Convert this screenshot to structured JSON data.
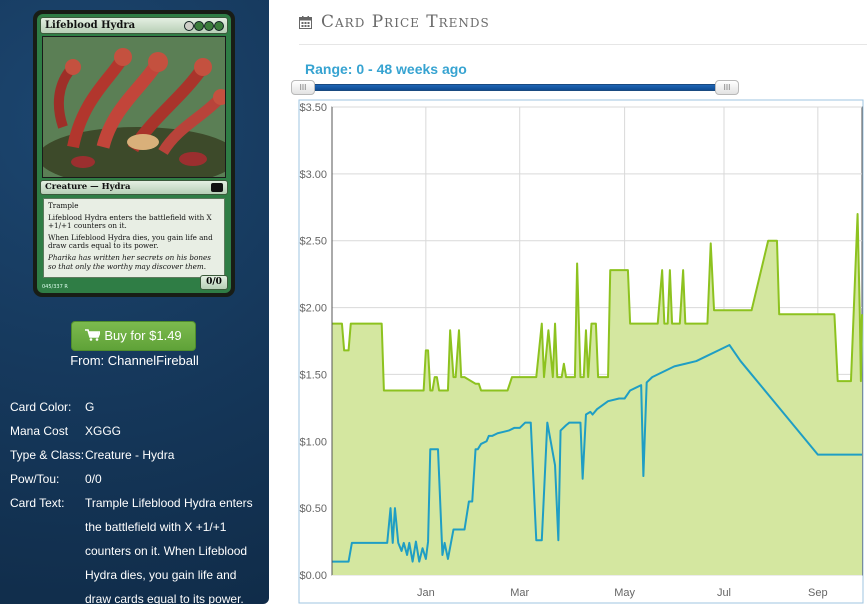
{
  "card": {
    "name": "Lifeblood Hydra",
    "type_line": "Creature — Hydra",
    "rules_text_1": "Trample",
    "rules_text_2": "Lifeblood Hydra enters the battlefield with X +1/+1 counters on it.",
    "rules_text_3": "When Lifeblood Hydra dies, you gain life and draw cards equal to its power.",
    "flavor_text": "Pharika has written her secrets on his bones so that only the worthy may discover them.",
    "pt": "0/0",
    "collector": "045/337 R"
  },
  "buy": {
    "label": "Buy for $1.49",
    "from": "From: ChannelFireball"
  },
  "details": {
    "card_color_label": "Card Color:",
    "card_color": "G",
    "mana_cost_label": "Mana Cost",
    "mana_cost": "XGGG",
    "type_class_label": "Type & Class:",
    "type_class": "Creature - Hydra",
    "pow_tou_label": "Pow/Tou:",
    "pow_tou": "0/0",
    "card_text_label": "Card Text:",
    "card_text": "Trample Lifeblood Hydra enters the battlefield with X +1/+1 counters on it. When Lifeblood Hydra dies, you gain life and draw cards equal to its power."
  },
  "trends": {
    "title": "Card Price Trends",
    "range_label": "Range: 0 - 48 weeks ago",
    "range_min_weeks": 0,
    "range_max_weeks": 48,
    "handle_glyph": "III"
  },
  "colors": {
    "panel_bg": "#15375a",
    "buy_button": "#6aad42",
    "range_label": "#36a3d1",
    "series_green": "#8dc21f",
    "series_green_fill": "#d4e7a0",
    "series_blue": "#1f9ec4"
  },
  "chart_data": {
    "type": "area",
    "xlabel": "",
    "ylabel": "",
    "x_tick_labels": [
      "Jan",
      "Mar",
      "May",
      "Jul",
      "Sep"
    ],
    "x_tick_weeks": [
      8.5,
      17,
      26.5,
      35.5,
      44
    ],
    "xlim": [
      0,
      48
    ],
    "ylim": [
      0,
      3.5
    ],
    "y_tick_labels": [
      "$0.00",
      "$0.50",
      "$1.00",
      "$1.50",
      "$2.00",
      "$2.50",
      "$3.00",
      "$3.50"
    ],
    "y_ticks": [
      0,
      0.5,
      1.0,
      1.5,
      2.0,
      2.5,
      3.0,
      3.5
    ],
    "grid": true,
    "legend": "none",
    "series": [
      {
        "x": [
          0,
          0.9,
          1.1,
          1.5,
          1.7,
          4.5,
          4.7,
          7.5,
          7.7,
          7.9,
          8.1,
          8.3,
          8.5,
          8.7,
          8.9,
          9.1,
          9.3,
          9.5,
          9.7,
          9.9,
          10.1,
          10.3,
          10.5,
          10.7,
          11.0,
          11.2,
          11.5,
          11.7,
          12.0,
          13.0,
          13.3,
          13.5,
          14.0,
          14.3,
          15.7,
          15.9,
          16.3,
          16.5,
          16.7,
          17.0,
          17.2,
          18.0,
          18.2,
          18.5,
          19.0,
          19.2,
          19.6,
          20.0,
          20.2,
          20.4,
          20.8,
          21.0,
          21.2,
          21.5,
          22.0,
          22.2,
          22.5,
          22.8,
          23.0,
          23.2,
          23.5,
          23.9,
          24.1,
          24.6,
          24.8,
          25.0,
          25.2,
          25.5,
          26.0,
          26.2,
          26.5,
          26.8,
          27.0,
          27.2,
          27.5,
          28.0,
          28.3,
          28.7,
          29.2,
          29.5,
          29.9,
          30.1,
          30.4,
          30.6,
          30.8,
          31.2,
          31.5,
          31.8,
          32.0,
          32.3,
          32.7,
          33.0,
          33.3,
          33.7,
          34.0,
          34.3,
          34.6,
          34.8,
          35.0,
          35.3,
          35.5,
          35.7,
          36.0,
          36.3,
          36.6,
          38.0,
          39.5,
          40.3,
          40.5,
          41.5,
          43.0,
          45.5,
          45.8,
          46.0,
          47.0,
          47.6,
          47.8,
          47.9,
          48.0
        ],
        "values": [
          1.88,
          1.88,
          1.68,
          1.68,
          1.88,
          1.88,
          1.38,
          1.38,
          1.38,
          1.38,
          1.38,
          1.38,
          1.68,
          1.68,
          1.38,
          1.38,
          1.48,
          1.48,
          1.38,
          1.38,
          1.38,
          1.38,
          1.38,
          1.83,
          1.48,
          1.48,
          1.83,
          1.48,
          1.48,
          1.43,
          1.43,
          1.38,
          1.38,
          1.38,
          1.38,
          1.38,
          1.48,
          1.48,
          1.48,
          1.48,
          1.48,
          1.48,
          1.48,
          1.48,
          1.88,
          1.48,
          1.83,
          1.48,
          1.88,
          1.48,
          1.48,
          1.58,
          1.48,
          1.48,
          1.48,
          2.33,
          1.48,
          1.48,
          1.83,
          1.48,
          1.88,
          1.88,
          1.48,
          1.48,
          1.48,
          1.48,
          2.28,
          2.28,
          2.28,
          2.28,
          2.28,
          2.28,
          1.88,
          1.88,
          1.88,
          1.88,
          1.88,
          1.88,
          1.88,
          1.88,
          2.28,
          1.88,
          1.88,
          2.28,
          1.88,
          1.88,
          1.88,
          2.28,
          1.88,
          1.88,
          1.88,
          1.88,
          1.88,
          1.88,
          1.88,
          2.48,
          1.98,
          1.98,
          1.98,
          1.98,
          1.98,
          1.98,
          1.98,
          1.98,
          1.98,
          1.98,
          2.5,
          2.5,
          1.95,
          1.95,
          1.95,
          1.95,
          1.45,
          1.45,
          1.45,
          2.7,
          1.95,
          1.45,
          1.95
        ]
      },
      {
        "x": [
          0,
          1.3,
          1.5,
          1.8,
          5.0,
          5.3,
          5.5,
          5.7,
          6.0,
          6.3,
          6.5,
          6.8,
          7.0,
          7.3,
          7.6,
          7.9,
          8.2,
          8.5,
          8.7,
          8.9,
          9.1,
          9.4,
          9.6,
          10.0,
          10.2,
          10.5,
          11.0,
          11.5,
          12.0,
          12.4,
          12.7,
          13.0,
          13.2,
          13.5,
          14.0,
          14.2,
          14.5,
          15.0,
          15.5,
          16.0,
          16.5,
          17.0,
          17.5,
          18.0,
          18.5,
          19.0,
          19.5,
          20.2,
          20.5,
          20.7,
          21.2,
          21.5,
          21.7,
          22.0,
          22.2,
          22.5,
          22.7,
          23.0,
          23.4,
          23.6,
          24.0,
          25.0,
          26.0,
          26.5,
          27.0,
          28.0,
          28.2,
          28.5,
          29.0,
          30.0,
          31.0,
          32.0,
          33.0,
          34.0,
          35.0,
          36.0,
          37.0,
          38.0,
          39.0,
          40.0,
          41.0,
          42.0,
          43.0,
          44.0,
          45.0,
          46.0,
          47.0,
          48.0
        ],
        "values": [
          0.1,
          0.1,
          0.1,
          0.24,
          0.24,
          0.5,
          0.24,
          0.5,
          0.24,
          0.18,
          0.24,
          0.15,
          0.24,
          0.1,
          0.25,
          0.1,
          0.2,
          0.12,
          0.25,
          0.94,
          0.94,
          0.94,
          0.94,
          0.15,
          0.24,
          0.12,
          0.34,
          0.34,
          0.34,
          0.55,
          0.55,
          0.94,
          0.94,
          0.98,
          1.0,
          1.04,
          1.04,
          1.06,
          1.07,
          1.08,
          1.1,
          1.1,
          1.14,
          1.14,
          0.26,
          0.26,
          1.14,
          0.82,
          0.26,
          1.08,
          1.12,
          1.14,
          1.14,
          1.14,
          1.14,
          1.14,
          0.72,
          1.2,
          1.22,
          1.2,
          1.24,
          1.3,
          1.32,
          1.32,
          1.38,
          1.42,
          0.74,
          1.44,
          1.48,
          1.52,
          1.56,
          1.58,
          1.6,
          1.64,
          1.68,
          1.72,
          1.6,
          1.5,
          1.4,
          1.3,
          1.2,
          1.1,
          1.0,
          0.9,
          0.9,
          0.9,
          0.9,
          0.9
        ]
      }
    ]
  }
}
